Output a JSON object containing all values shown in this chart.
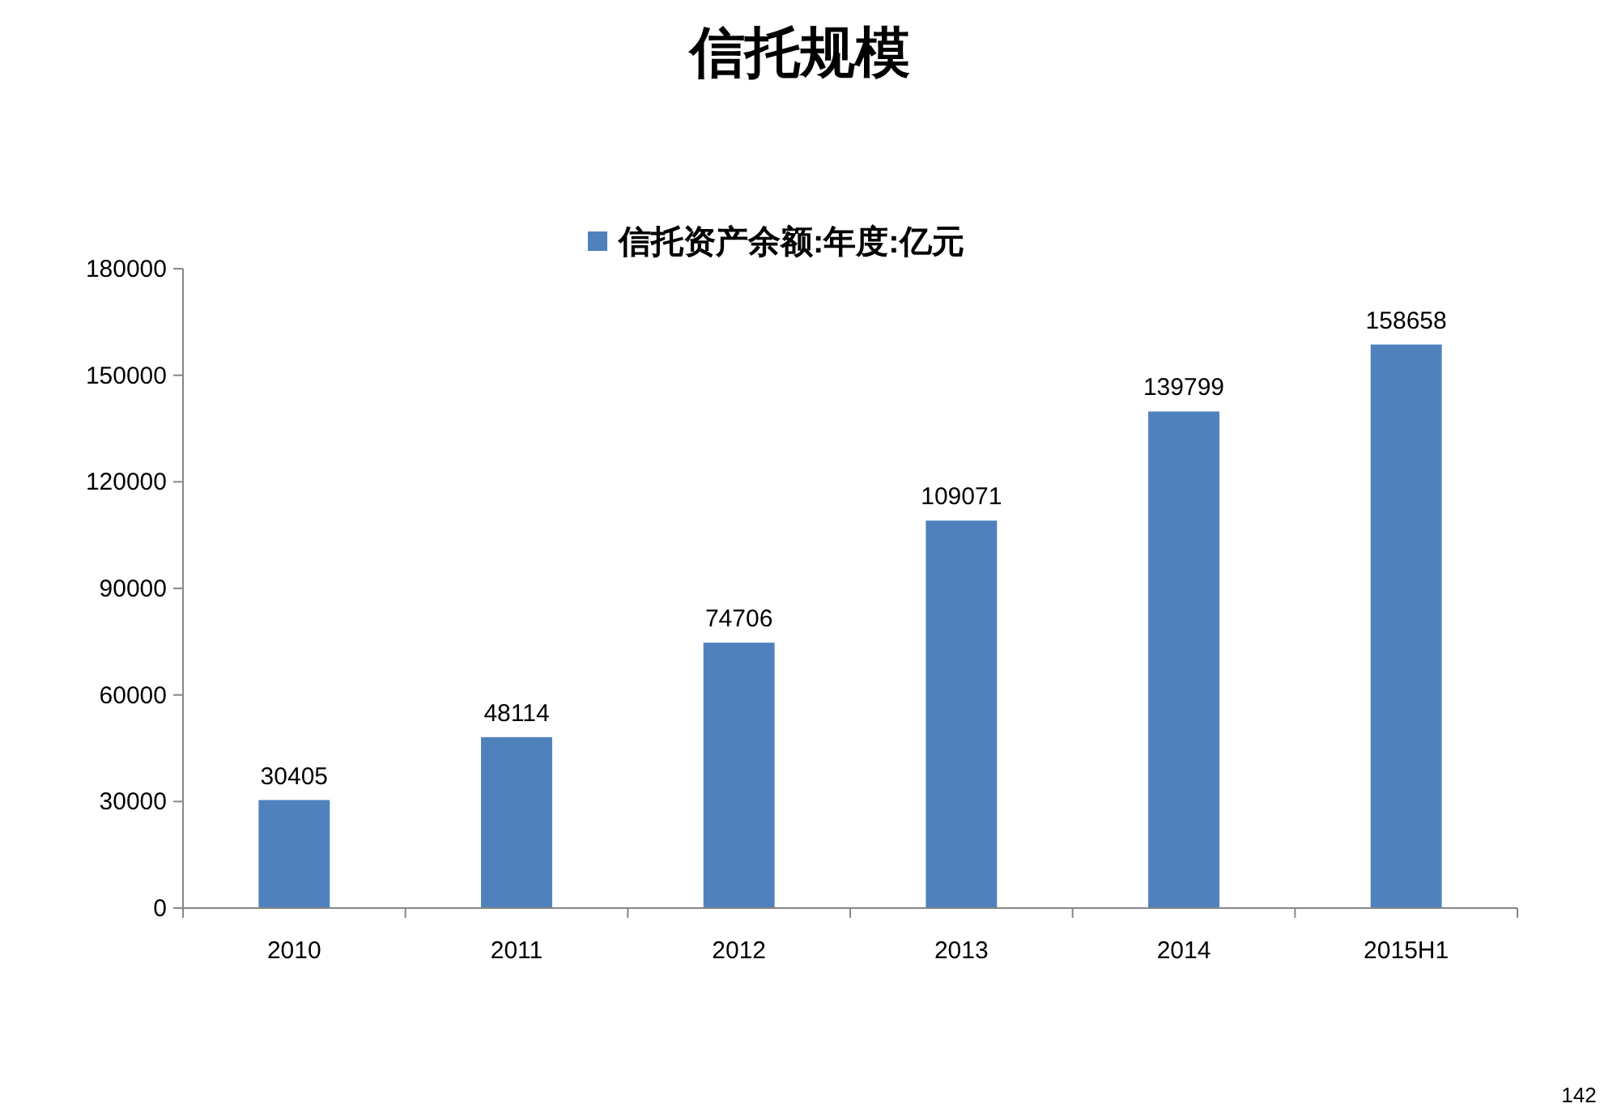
{
  "chart_data": {
    "type": "bar",
    "title": "信托规模",
    "categories": [
      "2010",
      "2011",
      "2012",
      "2013",
      "2014",
      "2015H1"
    ],
    "series": [
      {
        "name": "信托资产余额:年度:亿元",
        "color": "#4f81bd",
        "values": [
          30405,
          48114,
          74706,
          109071,
          139799,
          158658
        ]
      }
    ],
    "ylim": [
      0,
      180000
    ],
    "yticks": [
      0,
      30000,
      60000,
      90000,
      120000,
      150000,
      180000
    ],
    "data_labels": true,
    "legend": "top",
    "grid": false,
    "annotations": [
      "142"
    ]
  }
}
